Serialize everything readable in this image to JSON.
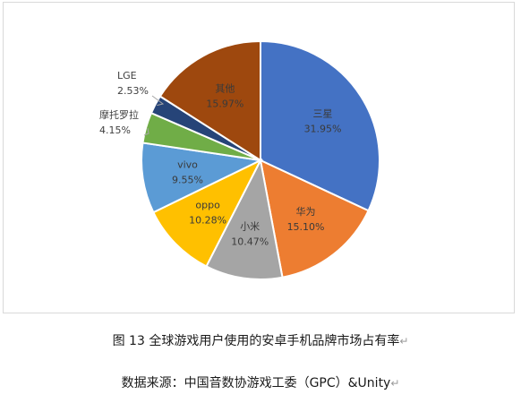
{
  "chart_data": {
    "type": "pie",
    "slices": [
      {
        "label": "三星",
        "value": 31.95,
        "pct_text": "31.95%",
        "color": "#4472C4"
      },
      {
        "label": "华为",
        "value": 15.1,
        "pct_text": "15.10%",
        "color": "#ED7D31"
      },
      {
        "label": "小米",
        "value": 10.47,
        "pct_text": "10.47%",
        "color": "#A5A5A5"
      },
      {
        "label": "oppo",
        "value": 10.28,
        "pct_text": "10.28%",
        "color": "#FFC000"
      },
      {
        "label": "vivo",
        "value": 9.55,
        "pct_text": "9.55%",
        "color": "#5B9BD5"
      },
      {
        "label": "摩托罗拉",
        "value": 4.15,
        "pct_text": "4.15%",
        "color": "#70AD47"
      },
      {
        "label": "LGE",
        "value": 2.53,
        "pct_text": "2.53%",
        "color": "#264478"
      },
      {
        "label": "其他",
        "value": 15.97,
        "pct_text": "15.97%",
        "color": "#9E480E"
      }
    ]
  },
  "caption": {
    "title": "图 13  全球游戏用户使用的安卓手机品牌市场占有率",
    "source": "数据来源：中国音数协游戏工委（GPC）&Unity"
  },
  "marks": {
    "paragraph": "↵"
  }
}
